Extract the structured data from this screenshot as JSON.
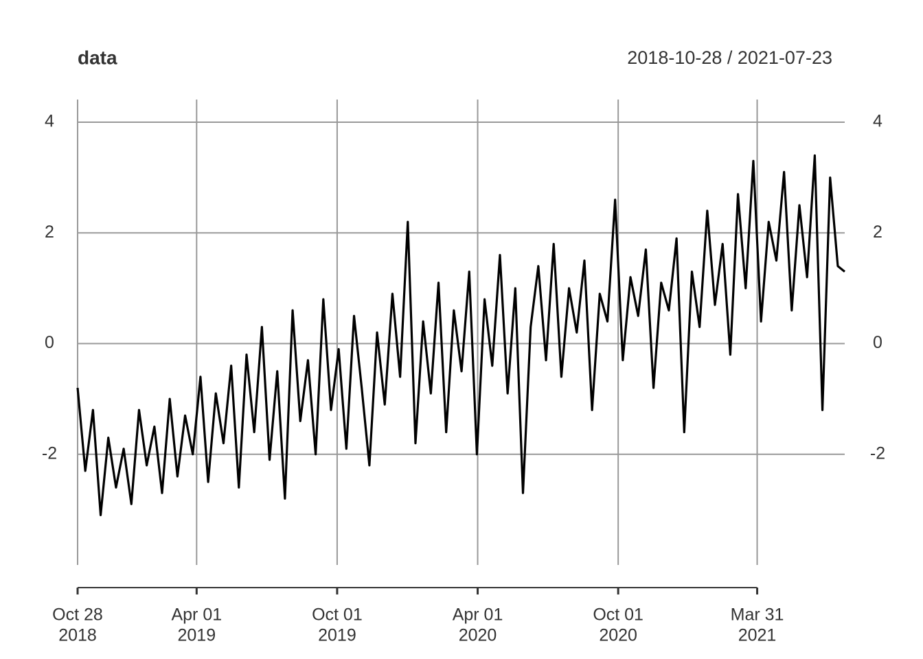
{
  "chart_data": {
    "type": "line",
    "title": "data",
    "subtitle": "2018-10-28 / 2021-07-23",
    "x": [
      "2018-10-28",
      "2018-11-07",
      "2018-11-17",
      "2018-11-27",
      "2018-12-07",
      "2018-12-17",
      "2018-12-27",
      "2019-01-06",
      "2019-01-16",
      "2019-01-26",
      "2019-02-05",
      "2019-02-15",
      "2019-02-25",
      "2019-03-07",
      "2019-03-17",
      "2019-03-27",
      "2019-04-06",
      "2019-04-16",
      "2019-04-26",
      "2019-05-06",
      "2019-05-16",
      "2019-05-26",
      "2019-06-05",
      "2019-06-15",
      "2019-06-25",
      "2019-07-05",
      "2019-07-15",
      "2019-07-25",
      "2019-08-04",
      "2019-08-14",
      "2019-08-24",
      "2019-09-03",
      "2019-09-13",
      "2019-09-23",
      "2019-10-03",
      "2019-10-13",
      "2019-10-23",
      "2019-11-02",
      "2019-11-12",
      "2019-11-22",
      "2019-12-02",
      "2019-12-12",
      "2019-12-22",
      "2020-01-01",
      "2020-01-11",
      "2020-01-21",
      "2020-01-31",
      "2020-02-10",
      "2020-02-20",
      "2020-03-01",
      "2020-03-11",
      "2020-03-21",
      "2020-03-31",
      "2020-04-10",
      "2020-04-20",
      "2020-04-30",
      "2020-05-10",
      "2020-05-20",
      "2020-05-30",
      "2020-06-09",
      "2020-06-19",
      "2020-06-29",
      "2020-07-09",
      "2020-07-19",
      "2020-07-29",
      "2020-08-08",
      "2020-08-18",
      "2020-08-28",
      "2020-09-07",
      "2020-09-17",
      "2020-09-27",
      "2020-10-07",
      "2020-10-17",
      "2020-10-27",
      "2020-11-06",
      "2020-11-16",
      "2020-11-26",
      "2020-12-06",
      "2020-12-16",
      "2020-12-26",
      "2021-01-05",
      "2021-01-15",
      "2021-01-25",
      "2021-02-04",
      "2021-02-14",
      "2021-02-24",
      "2021-03-06",
      "2021-03-16",
      "2021-03-26",
      "2021-04-05",
      "2021-04-15",
      "2021-04-25",
      "2021-05-05",
      "2021-05-15",
      "2021-05-25",
      "2021-06-04",
      "2021-06-14",
      "2021-06-24",
      "2021-07-04",
      "2021-07-14",
      "2021-07-23"
    ],
    "series": [
      {
        "name": "data",
        "color": "#000000",
        "values": [
          -0.8,
          -2.3,
          -1.2,
          -3.1,
          -1.7,
          -2.6,
          -1.9,
          -2.9,
          -1.2,
          -2.2,
          -1.5,
          -2.7,
          -1.0,
          -2.4,
          -1.3,
          -2.0,
          -0.6,
          -2.5,
          -0.9,
          -1.8,
          -0.4,
          -2.6,
          -0.2,
          -1.6,
          0.3,
          -2.1,
          -0.5,
          -2.8,
          0.6,
          -1.4,
          -0.3,
          -2.0,
          0.8,
          -1.2,
          -0.1,
          -1.9,
          0.5,
          -0.8,
          -2.2,
          0.2,
          -1.1,
          0.9,
          -0.6,
          2.2,
          -1.8,
          0.4,
          -0.9,
          1.1,
          -1.6,
          0.6,
          -0.5,
          1.3,
          -2.0,
          0.8,
          -0.4,
          1.6,
          -0.9,
          1.0,
          -2.7,
          0.3,
          1.4,
          -0.3,
          1.8,
          -0.6,
          1.0,
          0.2,
          1.5,
          -1.2,
          0.9,
          0.4,
          2.6,
          -0.3,
          1.2,
          0.5,
          1.7,
          -0.8,
          1.1,
          0.6,
          1.9,
          -1.6,
          1.3,
          0.3,
          2.4,
          0.7,
          1.8,
          -0.2,
          2.7,
          1.0,
          3.3,
          0.4,
          2.2,
          1.5,
          3.1,
          0.6,
          2.5,
          1.2,
          3.4,
          -1.2,
          3.0,
          1.4,
          1.3
        ]
      }
    ],
    "xlim": [
      "2018-10-28",
      "2021-07-23"
    ],
    "xticks": [
      {
        "value": "2018-10-28",
        "label": [
          "Oct 28",
          "2018"
        ]
      },
      {
        "value": "2019-04-01",
        "label": [
          "Apr 01",
          "2019"
        ]
      },
      {
        "value": "2019-10-01",
        "label": [
          "Oct 01",
          "2019"
        ]
      },
      {
        "value": "2020-04-01",
        "label": [
          "Apr 01",
          "2020"
        ]
      },
      {
        "value": "2020-10-01",
        "label": [
          "Oct 01",
          "2020"
        ]
      },
      {
        "value": "2021-03-31",
        "label": [
          "Mar 31",
          "2021"
        ]
      }
    ],
    "ylim": [
      -4.0,
      4.41
    ],
    "yticks": [
      -2,
      0,
      2,
      4
    ],
    "grid": true
  }
}
